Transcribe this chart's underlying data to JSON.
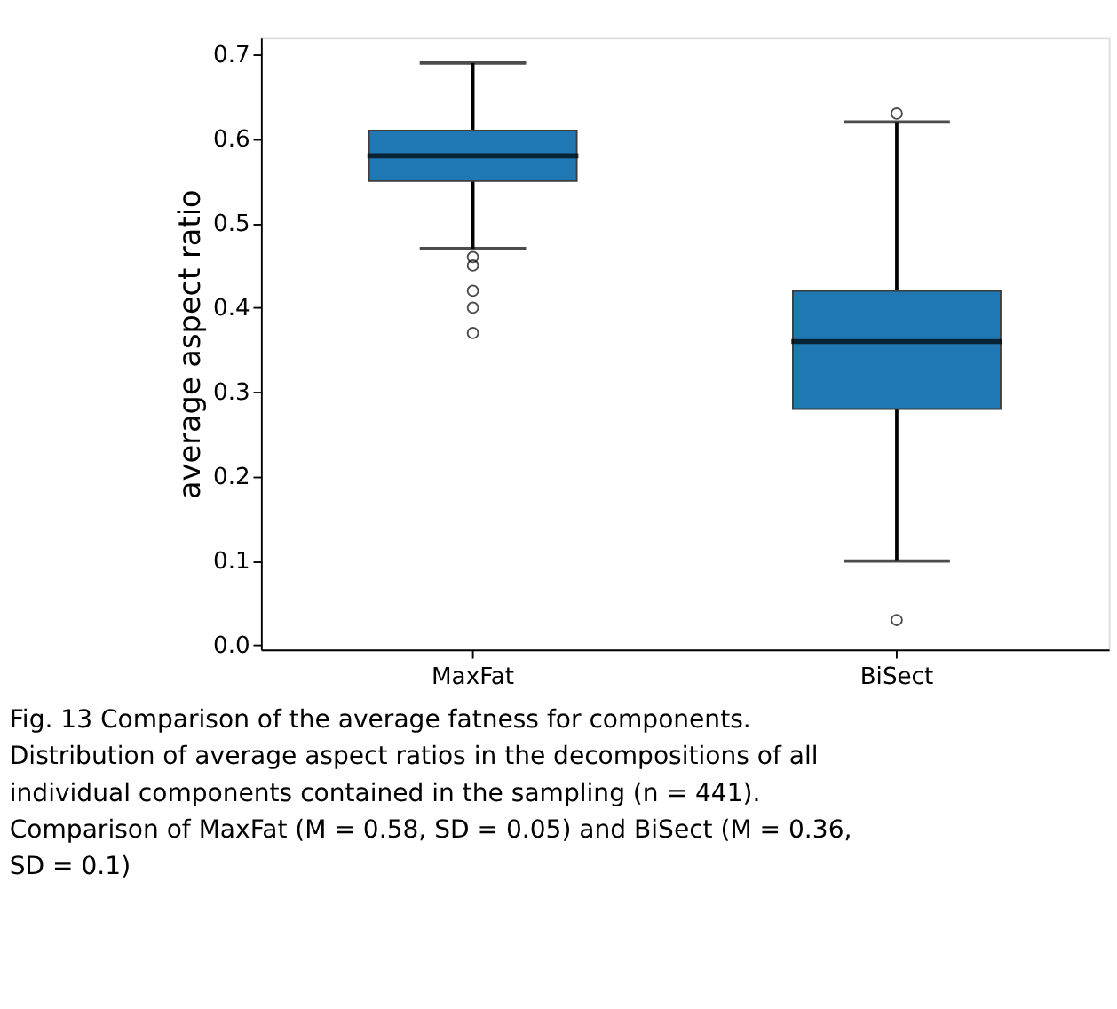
{
  "chart_data": {
    "type": "box",
    "ylabel": "average aspect ratio",
    "categories": [
      "MaxFat",
      "BiSect"
    ],
    "series": [
      {
        "color": "#1f77b4",
        "boxes": [
          {
            "low": 0.47,
            "q1": 0.55,
            "median": 0.58,
            "q3": 0.61,
            "high": 0.69,
            "outliers": [
              0.46,
              0.45,
              0.42,
              0.4,
              0.37
            ]
          },
          {
            "low": 0.1,
            "q1": 0.28,
            "median": 0.36,
            "q3": 0.42,
            "high": 0.62,
            "outliers": [
              0.63,
              0.03
            ]
          }
        ]
      }
    ],
    "ylim": [
      -0.005,
      0.72
    ],
    "yticks": [
      {
        "value": 0,
        "label": "0.0"
      },
      0.1,
      0.2,
      0.3,
      0.4,
      0.5,
      0.6,
      0.7
    ],
    "grid": false,
    "annotations": [
      "Fig. 13 Comparison of the average fatness for components. Distribution of average aspect ratios in the decompositions of all individual components contained in the sampling (n = 441). Comparison of MaxFat (M = 0.58, SD = 0.05) and BiSect (M = 0.36, SD = 0.1)"
    ]
  }
}
